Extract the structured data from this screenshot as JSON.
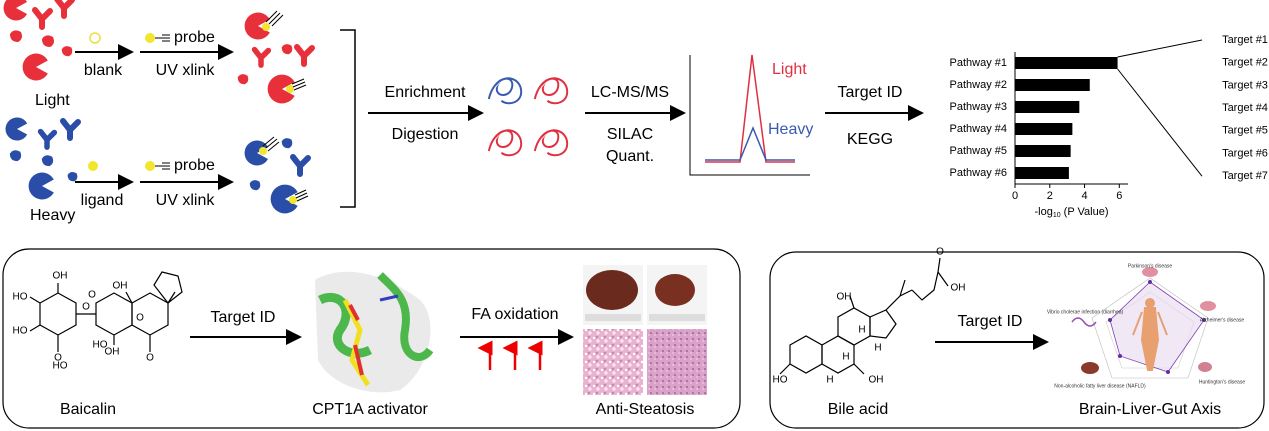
{
  "top": {
    "light": "Light",
    "heavy": "Heavy",
    "blank": "blank",
    "ligand": "ligand",
    "probe_light": "probe",
    "probe_heavy": "probe",
    "xlink_light": "UV xlink",
    "xlink_heavy": "UV xlink",
    "enrichment": "Enrichment",
    "digestion": "Digestion",
    "lcms": "LC-MS/MS",
    "silac": "SILAC",
    "quant": "Quant.",
    "peak_light": "Light",
    "peak_heavy": "Heavy",
    "target_id": "Target ID",
    "kegg": "KEGG"
  },
  "kegg_chart": {
    "categories": [
      "Pathway #1",
      "Pathway #2",
      "Pathway #3",
      "Pathway #4",
      "Pathway #5",
      "Pathway #6"
    ],
    "values": [
      5.9,
      4.3,
      3.7,
      3.3,
      3.2,
      3.1
    ],
    "xlim": [
      0,
      6.5
    ],
    "xticks": [
      0,
      2,
      4,
      6
    ],
    "color": "#000000",
    "xlabel": {
      "prefix": "-log",
      "subscript": "10",
      "suffix": " (P Value)"
    }
  },
  "targets": [
    "Target #1",
    "Target #2",
    "Target #3",
    "Target #4",
    "Target #5",
    "Target #6",
    "Target #7"
  ],
  "panel_left": {
    "compound": "Baicalin",
    "target_id": "Target ID",
    "protein": "CPT1A activator",
    "process": "FA oxidation",
    "outcome": "Anti-Steatosis",
    "atoms": [
      "OH",
      "HO",
      "HO",
      "O",
      "O",
      "HO",
      "OH",
      "HO",
      "O",
      "O",
      "O",
      "OH"
    ]
  },
  "panel_right": {
    "compound": "Bile acid",
    "target_id": "Target ID",
    "outcome": "Brain-Liver-Gut Axis",
    "atoms": [
      "OH",
      "O",
      "OH",
      "H",
      "H",
      "H",
      "H",
      "HO",
      "OH"
    ],
    "diseases": [
      "Parkinson's disease",
      "Alzheimer's disease",
      "Huntington's disease",
      "Non-alcoholic fatty liver disease (NAFLD)",
      "Vibrio cholerae infection (diarrhea)"
    ]
  }
}
